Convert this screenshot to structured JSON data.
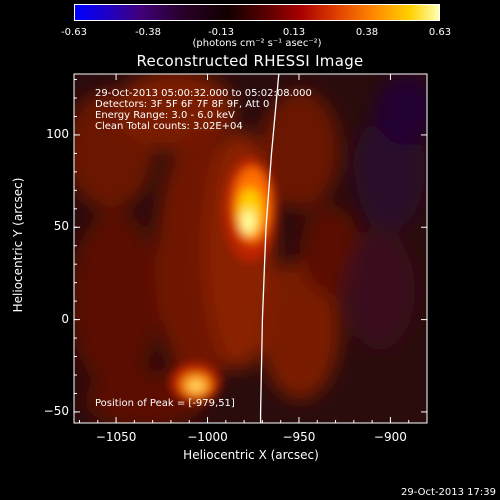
{
  "colorbar": {
    "ticks": [
      "-0.63",
      "-0.38",
      "-0.13",
      "0.13",
      "0.38",
      "0.63"
    ],
    "unit_text": "(photons cm⁻² s⁻¹ asec⁻²)"
  },
  "title": "Reconstructed RHESSI Image",
  "annotations": {
    "time_range": "29-Oct-2013 05:00:32.000 to 05:02:08.000",
    "detectors": "Detectors: 3F 5F 6F 7F 8F 9F, Att 0",
    "energy": "Energy Range: 3.0 - 6.0 keV",
    "clean": "Clean    Total counts: 3.02E+04",
    "peak": "Position of Peak = [-979,51]"
  },
  "timestamp": "29-Oct-2013 17:39",
  "chart_data": {
    "type": "heatmap",
    "title": "Reconstructed RHESSI Image",
    "xlabel": "Heliocentric X (arcsec)",
    "ylabel": "Heliocentric Y (arcsec)",
    "xlim": [
      -1073,
      -880
    ],
    "ylim": [
      -56,
      133
    ],
    "xticks": [
      -1050,
      -1000,
      -950,
      -900
    ],
    "xtick_labels": [
      "−1050",
      "−1000",
      "−950",
      "−900"
    ],
    "yticks": [
      -50,
      0,
      50,
      100
    ],
    "ytick_labels": [
      "−50",
      "0",
      "50",
      "100"
    ],
    "colorbar_range": [
      -0.63,
      0.63
    ],
    "sources": [
      {
        "name": "main peak",
        "x": -979,
        "y": 51
      },
      {
        "name": "secondary source",
        "x": -1002,
        "y": -38
      }
    ],
    "limb": [
      [
        -961,
        133
      ],
      [
        -965,
        90
      ],
      [
        -968,
        50
      ],
      [
        -970,
        0
      ],
      [
        -971,
        -50
      ],
      [
        -971,
        -56
      ]
    ]
  }
}
